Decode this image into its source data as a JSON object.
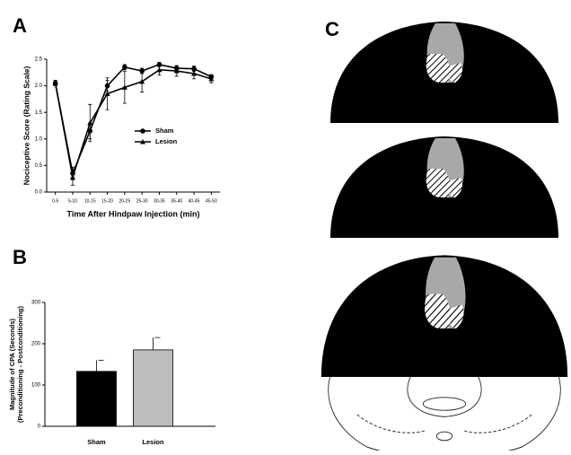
{
  "chart_data": [
    {
      "type": "line",
      "label": "A",
      "xlabel": "Time After Hindpaw Injection (min)",
      "ylabel": "Nociceptive Score (Rating Scale)",
      "categories": [
        "0-5",
        "5-10",
        "10-15",
        "15-20",
        "20-25",
        "25-30",
        "30-35",
        "35-40",
        "40-45",
        "45-50"
      ],
      "series": [
        {
          "name": "Sham",
          "color": "#000000",
          "marker": "circle",
          "values": [
            2.05,
            0.35,
            1.15,
            2.0,
            2.35,
            2.28,
            2.4,
            2.33,
            2.32,
            2.17
          ],
          "errors": [
            0.05,
            0.12,
            0.15,
            0.1,
            0.05,
            0.05,
            0.04,
            0.05,
            0.05,
            0.04
          ]
        },
        {
          "name": "Lesion",
          "color": "#000000",
          "marker": "triangle",
          "values": [
            2.05,
            0.28,
            1.3,
            1.85,
            1.97,
            2.08,
            2.3,
            2.28,
            2.23,
            2.13
          ],
          "errors": [
            0.05,
            0.15,
            0.35,
            0.3,
            0.3,
            0.2,
            0.1,
            0.1,
            0.1,
            0.07
          ]
        }
      ],
      "ylim": [
        0,
        2.5
      ],
      "yticks": [
        {
          "value": 0,
          "label": "0.0"
        },
        0.5,
        {
          "value": 1,
          "label": "1.0"
        },
        1.5,
        {
          "value": 2,
          "label": "2.0"
        },
        2.5
      ]
    },
    {
      "type": "bar",
      "label": "B",
      "ylabel": [
        "Magnitude of CPA (Seconds)",
        "(Preconditioning - Postconditioning)"
      ],
      "categories": [
        "Sham",
        "Lesion"
      ],
      "values": [
        133,
        185
      ],
      "errors": [
        27,
        30
      ],
      "colors": [
        "#000000",
        "#bdbdbd"
      ],
      "ylim": [
        0,
        300
      ],
      "yticks": [
        0,
        100,
        200,
        300
      ]
    }
  ],
  "diagram": {
    "label": "C"
  }
}
